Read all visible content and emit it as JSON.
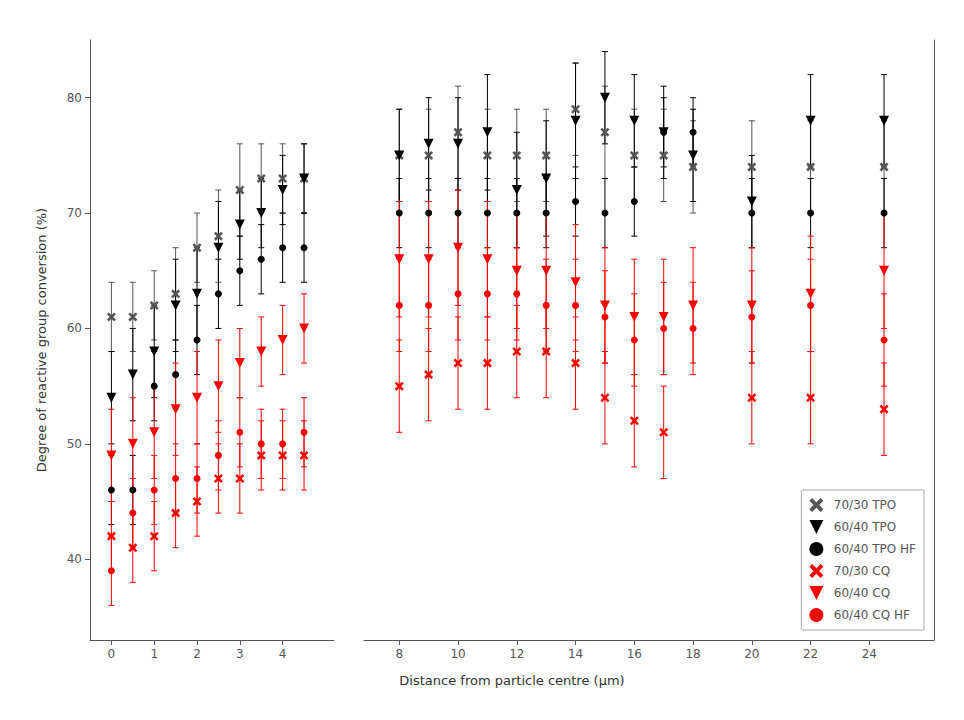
{
  "chart_data": {
    "type": "scatter",
    "xlabel": "Distance from particle centre (μm)",
    "ylabel": "Degree of reactive group conversion (%)",
    "xlim": [
      [
        -0.5,
        5.2
      ],
      [
        6.8,
        26.2
      ]
    ],
    "xticks": [
      [
        0,
        1,
        2,
        3,
        4
      ],
      [
        8,
        10,
        12,
        14,
        16,
        18,
        20,
        22,
        24
      ]
    ],
    "ylim": [
      33,
      85
    ],
    "yticks": [
      40,
      50,
      60,
      70,
      80
    ],
    "grid": false,
    "legend": "lower right",
    "series": [
      {
        "name": "70/30 TPO",
        "color": "#555555",
        "marker": "x",
        "x": [
          0,
          0.5,
          1,
          1.5,
          2,
          2.5,
          3,
          3.5,
          4,
          4.5,
          8,
          9,
          10,
          11,
          12,
          13,
          14,
          15,
          16,
          17,
          18,
          20,
          22,
          24.5
        ],
        "values": [
          61,
          61,
          62,
          63,
          67,
          68,
          72,
          73,
          73,
          73,
          75,
          75,
          77,
          75,
          75,
          75,
          79,
          77,
          75,
          75,
          74,
          74,
          74,
          74
        ],
        "yerr_lo": [
          3,
          3,
          3,
          4,
          3,
          4,
          4,
          3,
          3,
          3,
          4,
          4,
          4,
          4,
          4,
          4,
          4,
          4,
          4,
          4,
          4,
          4,
          4,
          4
        ],
        "yerr_hi": [
          3,
          3,
          3,
          4,
          3,
          4,
          4,
          3,
          3,
          3,
          4,
          4,
          4,
          4,
          4,
          4,
          4,
          4,
          4,
          4,
          4,
          4,
          4,
          4
        ]
      },
      {
        "name": "60/40 TPO",
        "color": "#000000",
        "marker": "triangle_down",
        "x": [
          0,
          0.5,
          1,
          1.5,
          2,
          2.5,
          3,
          3.5,
          4,
          4.5,
          8,
          9,
          10,
          11,
          12,
          13,
          14,
          15,
          16,
          17,
          18,
          20,
          22,
          24.5
        ],
        "values": [
          54,
          56,
          58,
          62,
          63,
          67,
          69,
          70,
          72,
          73,
          75,
          76,
          76,
          77,
          72,
          73,
          78,
          80,
          78,
          77,
          75,
          71,
          78,
          78
        ],
        "yerr_lo": [
          4,
          4,
          4,
          4,
          4,
          4,
          3,
          3,
          3,
          3,
          4,
          4,
          4,
          5,
          5,
          5,
          5,
          4,
          4,
          4,
          4,
          4,
          4,
          4
        ],
        "yerr_hi": [
          4,
          4,
          4,
          4,
          4,
          4,
          3,
          3,
          3,
          3,
          4,
          4,
          4,
          5,
          5,
          5,
          5,
          4,
          4,
          4,
          4,
          4,
          4,
          4
        ]
      },
      {
        "name": "60/40 TPO HF",
        "color": "#000000",
        "marker": "circle",
        "x": [
          0,
          0.5,
          1,
          1.5,
          2,
          2.5,
          3,
          3.5,
          4,
          4.5,
          8,
          9,
          10,
          11,
          12,
          13,
          14,
          15,
          16,
          17,
          18,
          20,
          22,
          24.5
        ],
        "values": [
          46,
          46,
          55,
          56,
          59,
          63,
          65,
          66,
          67,
          67,
          70,
          70,
          70,
          70,
          70,
          70,
          71,
          70,
          71,
          77,
          77,
          70,
          70,
          70
        ],
        "yerr_lo": [
          3,
          3,
          3,
          3,
          3,
          3,
          3,
          3,
          3,
          3,
          3,
          3,
          3,
          3,
          3,
          3,
          3,
          3,
          3,
          3,
          3,
          3,
          3,
          3
        ],
        "yerr_hi": [
          3,
          3,
          3,
          3,
          3,
          3,
          3,
          3,
          3,
          3,
          3,
          3,
          3,
          3,
          3,
          3,
          3,
          3,
          3,
          3,
          3,
          3,
          3,
          3
        ]
      },
      {
        "name": "70/30 CQ",
        "color": "#ff0000",
        "marker": "x",
        "x": [
          0,
          0.5,
          1,
          1.5,
          2,
          2.5,
          3,
          3.5,
          4,
          4.5,
          8,
          9,
          10,
          11,
          12,
          13,
          14,
          15,
          16,
          17,
          20,
          22,
          24.5
        ],
        "values": [
          42,
          41,
          42,
          44,
          45,
          47,
          47,
          49,
          49,
          49,
          55,
          56,
          57,
          57,
          58,
          58,
          57,
          54,
          52,
          51,
          54,
          54,
          53
        ],
        "yerr_lo": [
          3,
          3,
          3,
          3,
          3,
          3,
          3,
          3,
          3,
          3,
          4,
          4,
          4,
          4,
          4,
          4,
          4,
          4,
          4,
          4,
          4,
          4,
          4
        ],
        "yerr_hi": [
          3,
          3,
          3,
          3,
          3,
          3,
          3,
          3,
          3,
          3,
          4,
          4,
          4,
          4,
          4,
          4,
          4,
          4,
          4,
          4,
          4,
          4,
          4
        ]
      },
      {
        "name": "60/40 CQ",
        "color": "#ff0000",
        "marker": "triangle_down",
        "x": [
          0,
          0.5,
          1,
          1.5,
          2,
          2.5,
          3,
          3.5,
          4,
          4.5,
          8,
          9,
          10,
          11,
          12,
          13,
          14,
          15,
          16,
          17,
          18,
          20,
          22,
          24.5
        ],
        "values": [
          49,
          50,
          51,
          53,
          54,
          55,
          57,
          58,
          59,
          60,
          66,
          66,
          67,
          66,
          65,
          65,
          64,
          62,
          61,
          61,
          62,
          62,
          63,
          65
        ],
        "yerr_lo": [
          4,
          4,
          4,
          4,
          4,
          4,
          3,
          3,
          3,
          3,
          5,
          5,
          5,
          5,
          5,
          5,
          5,
          5,
          5,
          5,
          5,
          5,
          5,
          5
        ],
        "yerr_hi": [
          4,
          4,
          4,
          4,
          4,
          4,
          3,
          3,
          3,
          3,
          5,
          5,
          5,
          5,
          5,
          5,
          5,
          5,
          5,
          5,
          5,
          5,
          5,
          5
        ]
      },
      {
        "name": "60/40 CQ HF",
        "color": "#ff0000",
        "marker": "circle",
        "x": [
          0,
          0.5,
          1,
          1.5,
          2,
          2.5,
          3,
          3.5,
          4,
          4.5,
          8,
          9,
          10,
          11,
          12,
          13,
          14,
          15,
          16,
          17,
          18,
          20,
          22,
          24.5
        ],
        "values": [
          39,
          44,
          46,
          47,
          47,
          49,
          51,
          50,
          50,
          51,
          62,
          62,
          63,
          63,
          63,
          62,
          62,
          61,
          59,
          60,
          60,
          61,
          62,
          59
        ],
        "yerr_lo": [
          3,
          3,
          3,
          3,
          3,
          3,
          3,
          3,
          3,
          3,
          4,
          4,
          4,
          4,
          4,
          4,
          4,
          4,
          4,
          4,
          4,
          4,
          4,
          4
        ],
        "yerr_hi": [
          3,
          3,
          3,
          3,
          3,
          3,
          3,
          3,
          3,
          3,
          4,
          4,
          4,
          4,
          4,
          4,
          4,
          4,
          4,
          4,
          4,
          4,
          4,
          4
        ]
      }
    ]
  }
}
